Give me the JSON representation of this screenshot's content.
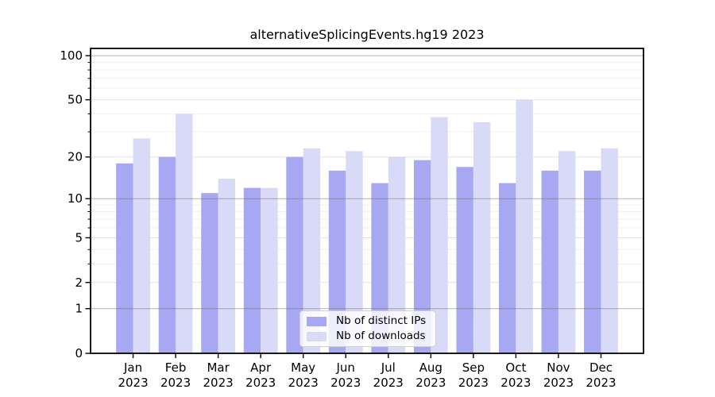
{
  "chart_data": {
    "type": "bar",
    "title": "alternativeSplicingEvents.hg19 2023",
    "categories": [
      "Jan",
      "Feb",
      "Mar",
      "Apr",
      "May",
      "Jun",
      "Jul",
      "Aug",
      "Sep",
      "Oct",
      "Nov",
      "Dec"
    ],
    "year_label": "2023",
    "series": [
      {
        "name": "Nb of distinct IPs",
        "color": "#a8a8f2",
        "values": [
          18,
          20,
          11,
          12,
          20,
          16,
          13,
          19,
          17,
          13,
          16,
          16
        ]
      },
      {
        "name": "Nb of downloads",
        "color": "#d9d9f8",
        "values": [
          27,
          40,
          14,
          12,
          23,
          22,
          20,
          38,
          35,
          50,
          22,
          23
        ]
      }
    ],
    "yscale": "log1p",
    "ylim": [
      0,
      112
    ],
    "yticks": [
      0,
      1,
      2,
      5,
      10,
      20,
      50,
      100
    ],
    "ytick_labels": [
      "0",
      "1",
      "2",
      "5",
      "10",
      "20",
      "50",
      "100"
    ],
    "mid_gridlines": [
      2,
      5,
      20,
      50
    ],
    "decade_gridlines": [
      1,
      10,
      100
    ],
    "minor_gridlines": [
      3,
      4,
      6,
      7,
      8,
      9,
      30,
      40,
      60,
      70,
      80,
      90
    ],
    "grid": "on",
    "legend_position": "lower center",
    "xlabel": "",
    "ylabel": ""
  },
  "colors": {
    "bar_ips": "#a8a8f2",
    "bar_downloads": "#d9d9f8",
    "grid_decade": "rgba(105,105,105,0.5)",
    "grid_major": "#e3e3e3",
    "grid_minor": "#f0f0f0",
    "axis": "#000000",
    "text": "#000000",
    "legend_border": "#d0d0d0",
    "legend_bg": "rgba(255,255,255,0.8)"
  }
}
